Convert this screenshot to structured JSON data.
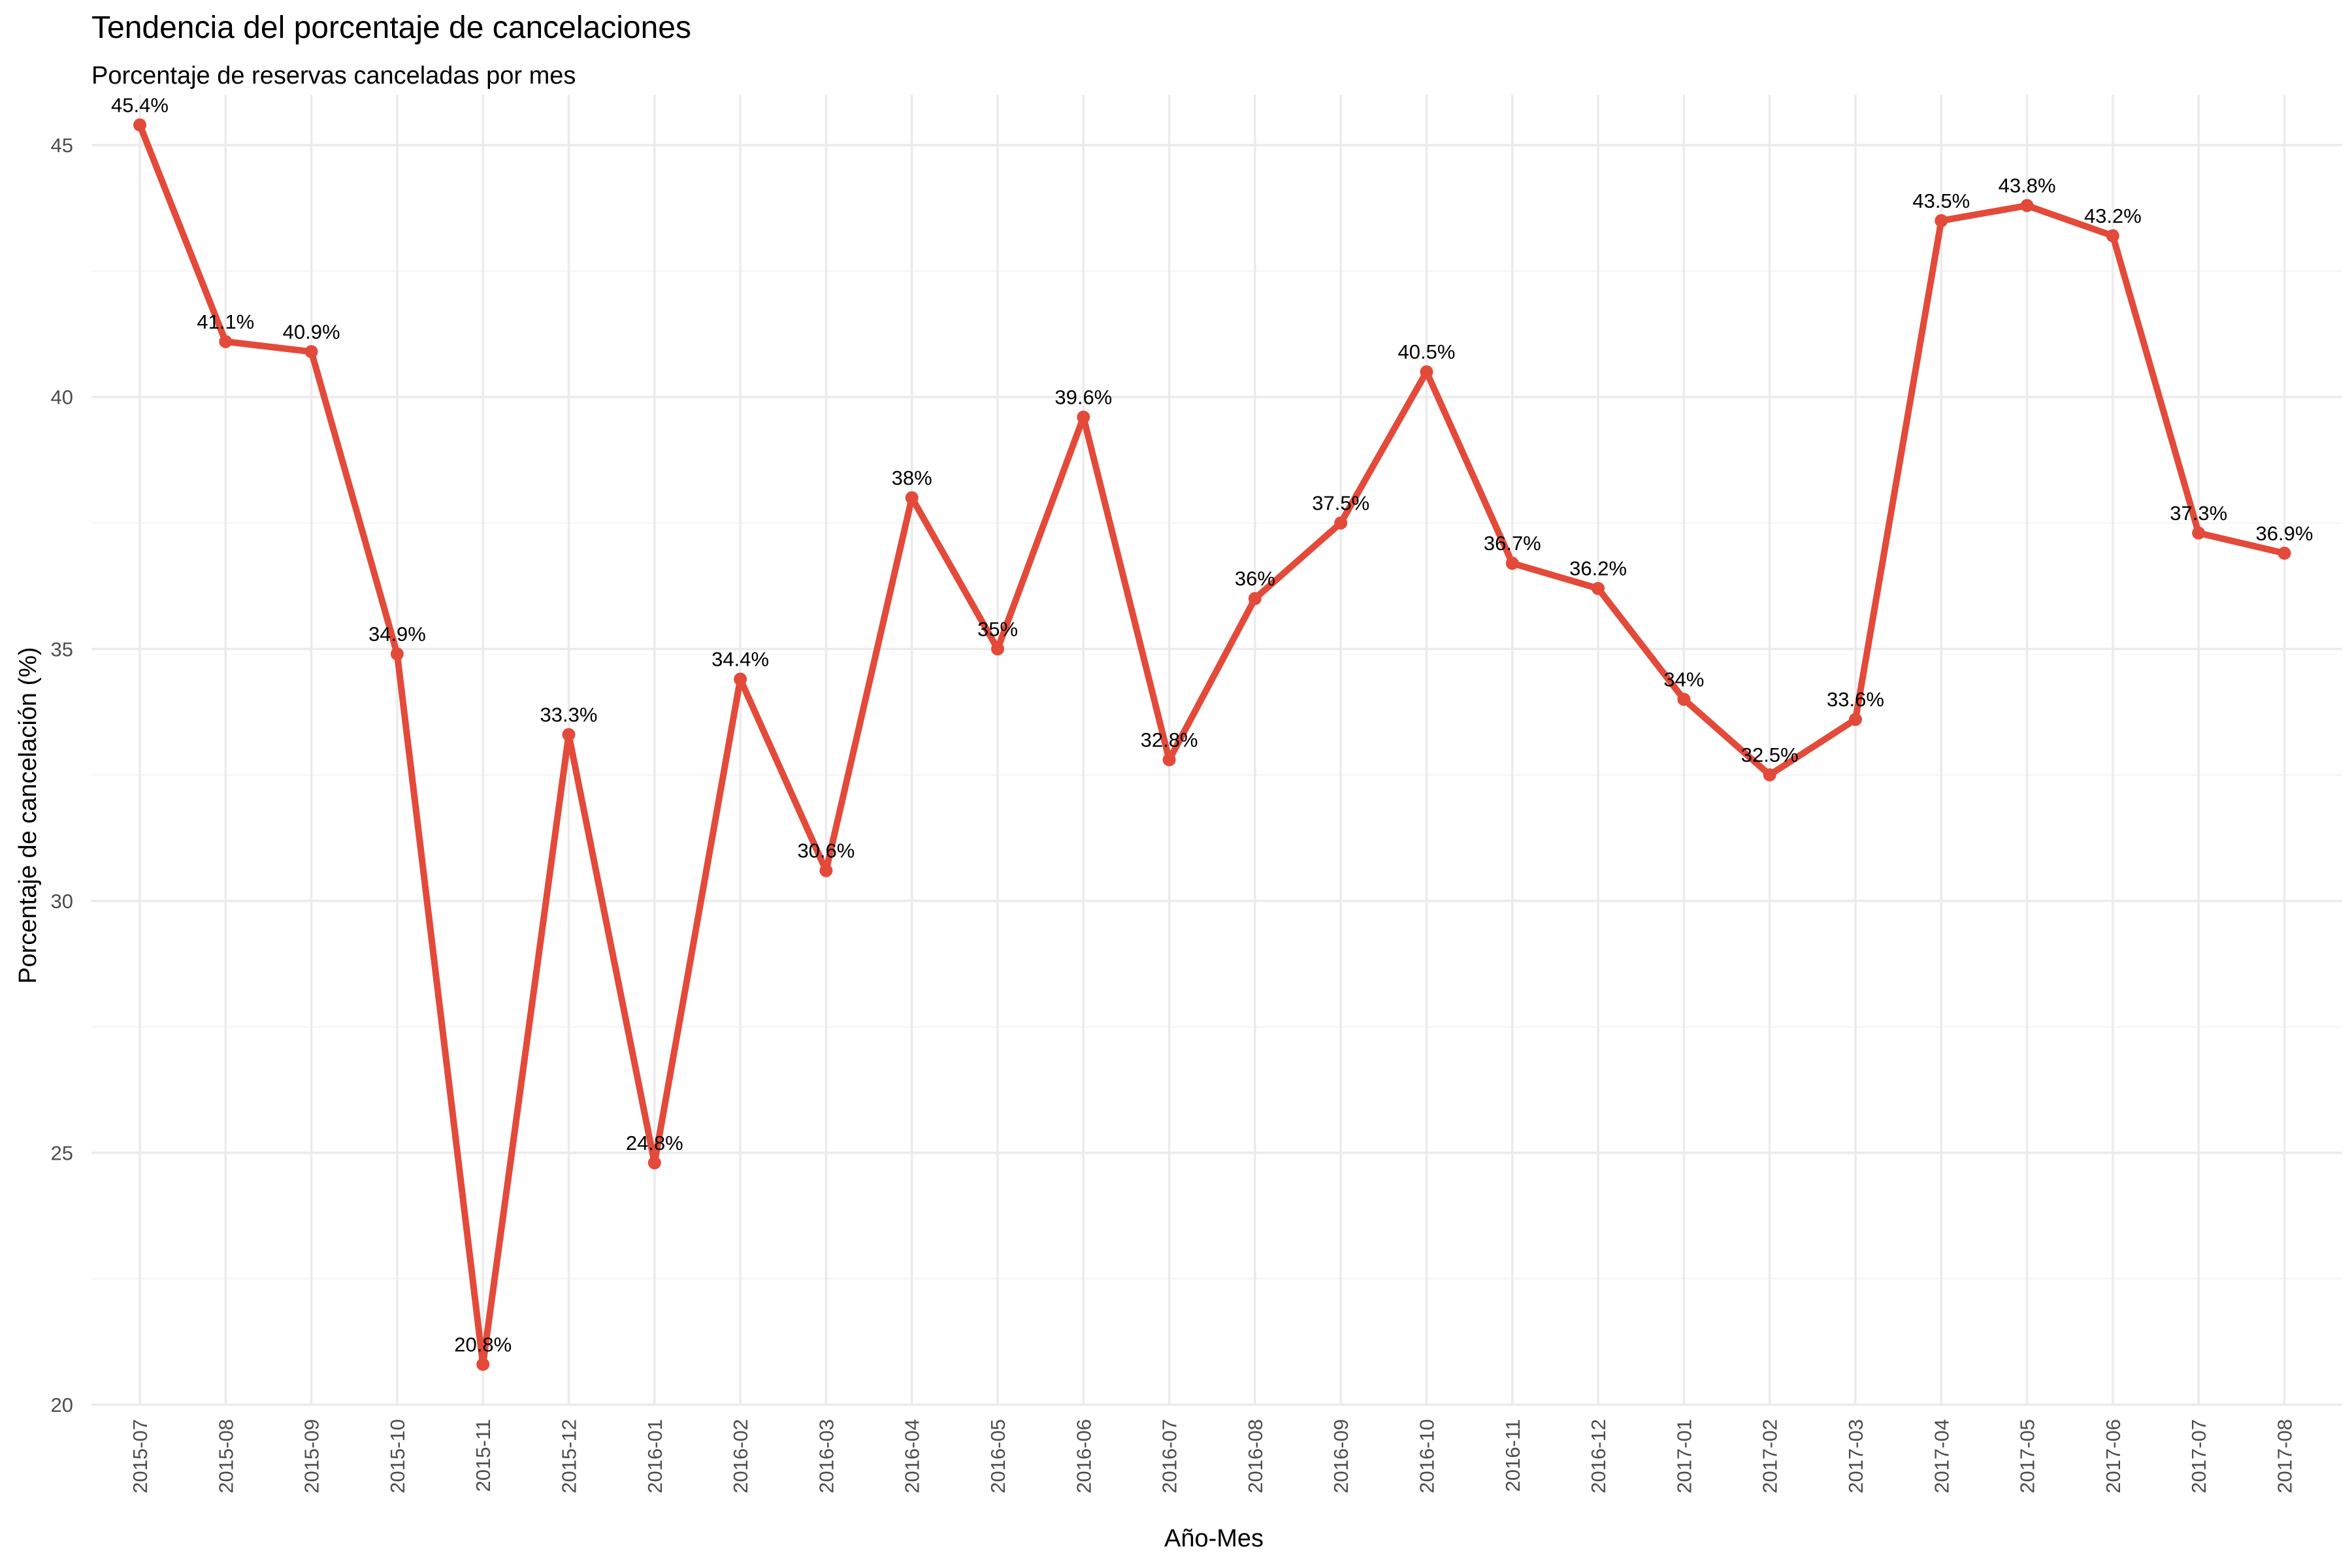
{
  "chart_data": {
    "type": "line",
    "title": "Tendencia del porcentaje de cancelaciones",
    "subtitle": "Porcentaje de reservas canceladas por mes",
    "xlabel": "Año-Mes",
    "ylabel": "Porcentaje de cancelación (%)",
    "ylim": [
      20,
      46
    ],
    "yticks": [
      20,
      25,
      30,
      35,
      40,
      45
    ],
    "grid": true,
    "line_color": "#e34a3a",
    "categories": [
      "2015-07",
      "2015-08",
      "2015-09",
      "2015-10",
      "2015-11",
      "2015-12",
      "2016-01",
      "2016-02",
      "2016-03",
      "2016-04",
      "2016-05",
      "2016-06",
      "2016-07",
      "2016-08",
      "2016-09",
      "2016-10",
      "2016-11",
      "2016-12",
      "2017-01",
      "2017-02",
      "2017-03",
      "2017-04",
      "2017-05",
      "2017-06",
      "2017-07",
      "2017-08"
    ],
    "values": [
      45.4,
      41.1,
      40.9,
      34.9,
      20.8,
      33.3,
      24.8,
      34.4,
      30.6,
      38.0,
      35.0,
      39.6,
      32.8,
      36.0,
      37.5,
      40.5,
      36.7,
      36.2,
      34.0,
      32.5,
      33.6,
      43.5,
      43.8,
      43.2,
      37.3,
      36.9
    ],
    "labels": [
      "45.4%",
      "41.1%",
      "40.9%",
      "34.9%",
      "20.8%",
      "33.3%",
      "24.8%",
      "34.4%",
      "30.6%",
      "38%",
      "35%",
      "39.6%",
      "32.8%",
      "36%",
      "37.5%",
      "40.5%",
      "36.7%",
      "36.2%",
      "34%",
      "32.5%",
      "33.6%",
      "43.5%",
      "43.8%",
      "43.2%",
      "37.3%",
      "36.9%"
    ]
  }
}
